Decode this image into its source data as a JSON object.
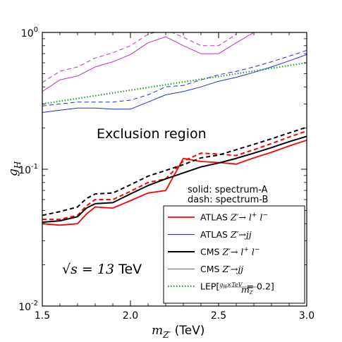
{
  "chart_data": {
    "type": "line",
    "xlabel_symbol": "m",
    "xlabel_sub": "Z′",
    "xlabel_unit": "(TeV)",
    "ylabel_symbol": "g",
    "ylabel_sub": "H",
    "xlim": [
      1.5,
      3.0
    ],
    "ylim": [
      0.01,
      1.0
    ],
    "yscale": "log",
    "grid": false,
    "legend_position": "lower-right",
    "x_ticks": [
      1.5,
      2.0,
      2.5,
      3.0
    ],
    "x_tick_labels": [
      "1.5",
      "2.0",
      "2.5",
      "3.0"
    ],
    "y_ticks": [
      0.01,
      0.1,
      1.0
    ],
    "y_tick_labels": [
      {
        "base": "10",
        "exp": "-2"
      },
      {
        "base": "10",
        "exp": "-1"
      },
      {
        "base": "10",
        "exp": "0"
      }
    ],
    "annotations": {
      "region": "Exclusion region",
      "solid": "solid: spectrum-A",
      "dash": "dash: spectrum-B",
      "energy_prefix": "√s = 13",
      "energy_unit": "TeV"
    },
    "series": [
      {
        "key": "atlas_ll_solid",
        "color": "#ff0000",
        "width": 1.8,
        "dash": "none",
        "label_id": "atlas_ll",
        "x": [
          1.5,
          1.6,
          1.7,
          1.75,
          1.8,
          1.9,
          2.0,
          2.1,
          2.2,
          2.3,
          2.4,
          2.5,
          2.6,
          2.7,
          2.8,
          2.9,
          3.0
        ],
        "y": [
          0.04,
          0.039,
          0.04,
          0.047,
          0.053,
          0.052,
          0.059,
          0.067,
          0.07,
          0.12,
          0.114,
          0.112,
          0.109,
          0.121,
          0.133,
          0.148,
          0.163
        ]
      },
      {
        "key": "atlas_ll_dash",
        "color": "#ff0000",
        "width": 2.0,
        "dash": "6,4",
        "label_id": "atlas_ll",
        "x": [
          1.5,
          1.6,
          1.7,
          1.75,
          1.8,
          1.9,
          2.0,
          2.1,
          2.2,
          2.3,
          2.4,
          2.5,
          2.6,
          2.7,
          2.8,
          2.9,
          3.0
        ],
        "y": [
          0.043,
          0.043,
          0.046,
          0.054,
          0.06,
          0.06,
          0.069,
          0.08,
          0.085,
          0.115,
          0.131,
          0.129,
          0.126,
          0.139,
          0.154,
          0.172,
          0.19
        ]
      },
      {
        "key": "atlas_jj_solid",
        "color": "#1f2fd6",
        "width": 1.0,
        "dash": "none",
        "label_id": "atlas_jj",
        "x": [
          1.5,
          1.6,
          1.7,
          1.8,
          1.9,
          2.0,
          2.1,
          2.2,
          2.3,
          2.4,
          2.5,
          2.6,
          2.7,
          2.8,
          2.9,
          3.0
        ],
        "y": [
          0.26,
          0.27,
          0.28,
          0.28,
          0.275,
          0.275,
          0.31,
          0.35,
          0.37,
          0.4,
          0.44,
          0.47,
          0.51,
          0.56,
          0.62,
          0.69
        ]
      },
      {
        "key": "atlas_jj_dash",
        "color": "#1f2fd6",
        "width": 1.0,
        "dash": "6,4",
        "label_id": "atlas_jj",
        "x": [
          1.5,
          1.6,
          1.7,
          1.8,
          1.9,
          2.0,
          2.1,
          2.2,
          2.3,
          2.4,
          2.5,
          2.6,
          2.7,
          2.8,
          2.9,
          3.0
        ],
        "y": [
          0.29,
          0.3,
          0.31,
          0.31,
          0.31,
          0.32,
          0.35,
          0.4,
          0.41,
          0.45,
          0.49,
          0.52,
          0.56,
          0.61,
          0.67,
          0.74
        ]
      },
      {
        "key": "cms_ll_solid",
        "color": "#000000",
        "width": 2.0,
        "dash": "none",
        "label_id": "cms_ll",
        "x": [
          1.5,
          1.6,
          1.7,
          1.75,
          1.8,
          1.9,
          2.0,
          2.1,
          2.2,
          2.3,
          2.4,
          2.5,
          2.6,
          2.7,
          2.8,
          2.9,
          3.0
        ],
        "y": [
          0.041,
          0.042,
          0.045,
          0.052,
          0.056,
          0.057,
          0.066,
          0.076,
          0.085,
          0.094,
          0.104,
          0.111,
          0.12,
          0.131,
          0.144,
          0.159,
          0.174
        ]
      },
      {
        "key": "cms_ll_dash",
        "color": "#000000",
        "width": 2.0,
        "dash": "6,4",
        "label_id": "cms_ll",
        "x": [
          1.5,
          1.6,
          1.7,
          1.75,
          1.8,
          1.9,
          2.0,
          2.1,
          2.2,
          2.3,
          2.4,
          2.5,
          2.6,
          2.7,
          2.8,
          2.9,
          3.0
        ],
        "y": [
          0.046,
          0.049,
          0.053,
          0.061,
          0.066,
          0.067,
          0.077,
          0.089,
          0.098,
          0.108,
          0.121,
          0.127,
          0.139,
          0.152,
          0.167,
          0.184,
          0.203
        ]
      },
      {
        "key": "cms_jj_solid",
        "color": "#c02fc0",
        "width": 1.0,
        "dash": "none",
        "label_id": "cms_jj",
        "x": [
          1.5,
          1.6,
          1.7,
          1.8,
          1.9,
          2.0,
          2.1,
          2.2,
          2.3,
          2.4,
          2.5,
          2.6,
          2.7
        ],
        "y": [
          0.37,
          0.45,
          0.48,
          0.56,
          0.61,
          0.69,
          0.84,
          0.93,
          0.8,
          0.7,
          0.7,
          0.84,
          1.0
        ]
      },
      {
        "key": "cms_jj_dash",
        "color": "#c02fc0",
        "width": 1.0,
        "dash": "6,4",
        "label_id": "cms_jj",
        "x": [
          1.5,
          1.6,
          1.7,
          1.8,
          1.9,
          2.0,
          2.1,
          2.2,
          2.3,
          2.4,
          2.5,
          2.6
        ],
        "y": [
          0.43,
          0.52,
          0.56,
          0.65,
          0.71,
          0.8,
          0.97,
          1.05,
          0.92,
          0.8,
          0.8,
          0.97
        ]
      },
      {
        "key": "lep",
        "color": "#2a9d2a",
        "width": 2.2,
        "dash": "1.5,2.5",
        "label_id": "lep",
        "x": [
          1.5,
          3.0
        ],
        "y": [
          0.3,
          0.6
        ]
      }
    ],
    "legend": [
      {
        "id": "atlas_ll",
        "color": "#ff0000",
        "dash": "none",
        "width": 1.8,
        "prefix": "ATLAS",
        "math_base": "Z′→ l",
        "math_sup1": "+",
        "math_mid": " l",
        "math_sup2": "−"
      },
      {
        "id": "atlas_jj",
        "color": "#1f2fd6",
        "dash": "none",
        "width": 1.0,
        "prefix": "ATLAS",
        "math_base": "Z′→jj"
      },
      {
        "id": "cms_ll",
        "color": "#000000",
        "dash": "none",
        "width": 2.0,
        "prefix": "CMS",
        "math_base": "Z′→ l",
        "math_sup1": "+",
        "math_mid": " l",
        "math_sup2": "−"
      },
      {
        "id": "cms_jj",
        "color": "#c02fc0",
        "dash": "none",
        "width": 1.0,
        "prefix": "CMS",
        "math_base": "Z′→jj"
      },
      {
        "id": "lep",
        "color": "#2a9d2a",
        "dash": "1.5,2.5",
        "width": 2.2,
        "prefix": "LEP",
        "frac_num": "g",
        "frac_num_sub": "H",
        "frac_num_rest": "×TeV",
        "frac_den": "m",
        "frac_den_sub": "Z′",
        "frac_tail": " = 0.2]",
        "frac_head": "["
      }
    ]
  }
}
